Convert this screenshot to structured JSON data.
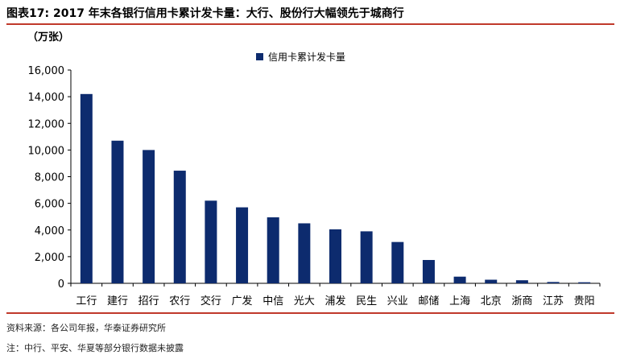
{
  "figure": {
    "label": "图表17:",
    "title": "2017 年末各银行信用卡累计发卡量：大行、股份行大幅领先于城商行"
  },
  "source_note": "资料来源：各公司年报，华泰证券研究所",
  "footnote": "注：中行、平安、华夏等部分银行数据未披露",
  "colors": {
    "bar": "#0d2b6e",
    "rule": "#c0392b"
  },
  "chart_data": {
    "type": "bar",
    "unit_label": "（万张）",
    "categories": [
      "工行",
      "建行",
      "招行",
      "农行",
      "交行",
      "广发",
      "中信",
      "光大",
      "浦发",
      "民生",
      "兴业",
      "邮储",
      "上海",
      "北京",
      "浙商",
      "江苏",
      "贵阳"
    ],
    "series": [
      {
        "name": "信用卡累计发卡量",
        "values": [
          14200,
          10700,
          10000,
          8450,
          6200,
          5700,
          4950,
          4500,
          4050,
          3900,
          3100,
          1750,
          500,
          270,
          230,
          100,
          80
        ]
      }
    ],
    "ylim": [
      0,
      16000
    ],
    "yticks": [
      "0",
      "2,000",
      "4,000",
      "6,000",
      "8,000",
      "10,000",
      "12,000",
      "14,000",
      "16,000"
    ],
    "ytick_values": [
      0,
      2000,
      4000,
      6000,
      8000,
      10000,
      12000,
      14000,
      16000
    ],
    "legend_position": "top-center",
    "grid": false
  }
}
